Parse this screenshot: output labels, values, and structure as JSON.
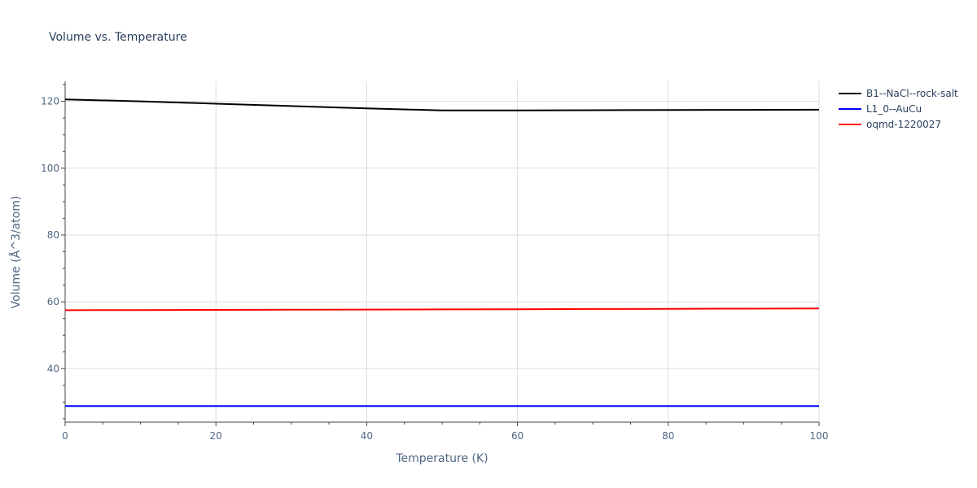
{
  "chart_data": {
    "type": "line",
    "title": "Volume vs. Temperature",
    "xlabel": "Temperature (K)",
    "ylabel": "Volume (Å^3/atom)",
    "xlim": [
      0,
      100
    ],
    "ylim": [
      24,
      126
    ],
    "x_ticks": [
      0,
      20,
      40,
      60,
      80,
      100
    ],
    "y_ticks": [
      40,
      60,
      80,
      100,
      120
    ],
    "grid": true,
    "legend_position": "top-right",
    "series": [
      {
        "name": "B1--NaCl--rock-salt",
        "color": "#000000",
        "x": [
          0,
          10,
          20,
          30,
          40,
          50,
          60,
          70,
          80,
          90,
          100
        ],
        "y": [
          120.6,
          120.0,
          119.3,
          118.6,
          117.9,
          117.3,
          117.3,
          117.35,
          117.4,
          117.45,
          117.5
        ]
      },
      {
        "name": "L1_0--AuCu",
        "color": "#0000ff",
        "x": [
          0,
          10,
          20,
          30,
          40,
          50,
          60,
          70,
          80,
          90,
          100
        ],
        "y": [
          28.8,
          28.8,
          28.8,
          28.8,
          28.8,
          28.8,
          28.8,
          28.8,
          28.8,
          28.8,
          28.8
        ]
      },
      {
        "name": "oqmd-1220027",
        "color": "#ff0000",
        "x": [
          0,
          10,
          20,
          30,
          40,
          50,
          60,
          70,
          80,
          90,
          100
        ],
        "y": [
          57.5,
          57.55,
          57.6,
          57.65,
          57.7,
          57.75,
          57.8,
          57.85,
          57.9,
          57.95,
          58.0
        ]
      }
    ]
  }
}
